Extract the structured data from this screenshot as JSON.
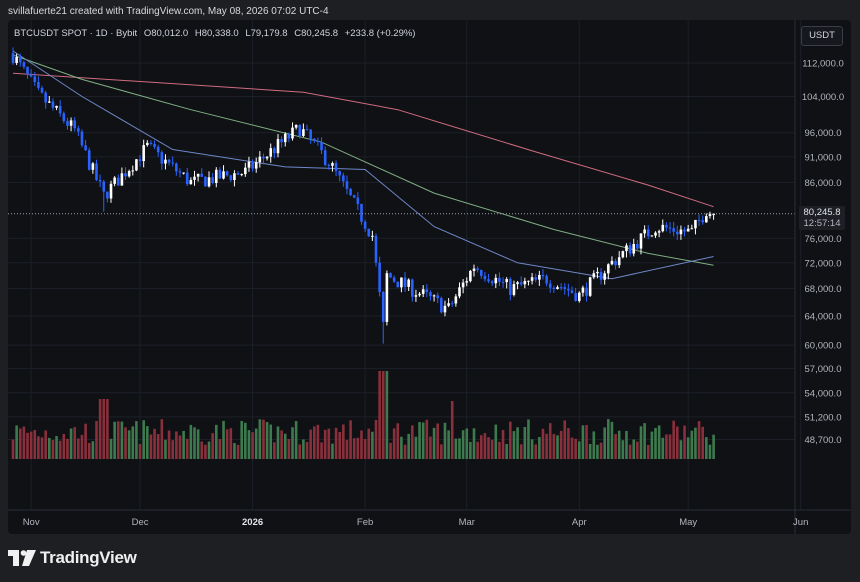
{
  "credit": "svillafuerte21 created with TradingView.com, May 08, 2026 07:02 UTC-4",
  "legend": {
    "symbol": "BTCUSDT SPOT · 1D · Bybit",
    "open": "O80,012.0",
    "high": "H80,338.0",
    "low": "L79,179.8",
    "close": "C80,245.8",
    "change": "+233.8 (+0.29%)"
  },
  "currency_button": "USDT",
  "last_price": {
    "value": "80,245.8",
    "countdown": "12:57:14"
  },
  "brand": "TradingView",
  "colors": {
    "bull": "#ffffff",
    "bear": "#2962ff",
    "vol_up": "#3d7a4e",
    "vol_down": "#8a2f3c",
    "ma_red": "#d16b80",
    "ma_green": "#7fae83",
    "ma_blue": "#6f87c9"
  },
  "chart_data": {
    "type": "candlestick",
    "y_scale": "log",
    "y_ticks": [
      "112,000.0",
      "104,000.0",
      "96,000.0",
      "91,000.0",
      "86,000.0",
      "80,245.8",
      "76,000.0",
      "72,000.0",
      "68,000.0",
      "64,000.0",
      "60,000.0",
      "57,000.0",
      "54,000.0",
      "51,200.0",
      "48,700.0"
    ],
    "x_ticks": [
      "Nov",
      "Dec",
      "2026",
      "Feb",
      "Mar",
      "Apr",
      "May",
      "Jun"
    ],
    "close_path": [
      {
        "date": "2025-10-27",
        "close": 114000
      },
      {
        "date": "2025-11-03",
        "close": 104500
      },
      {
        "date": "2025-11-13",
        "close": 96500
      },
      {
        "date": "2025-11-21",
        "close": 83500
      },
      {
        "date": "2025-12-03",
        "close": 93000
      },
      {
        "date": "2025-12-15",
        "close": 86000
      },
      {
        "date": "2025-12-30",
        "close": 88000
      },
      {
        "date": "2026-01-14",
        "close": 97000
      },
      {
        "date": "2026-01-22",
        "close": 90000
      },
      {
        "date": "2026-02-03",
        "close": 76500
      },
      {
        "date": "2026-02-06",
        "close": 62500
      },
      {
        "date": "2026-02-07",
        "close": 70000
      },
      {
        "date": "2026-02-24",
        "close": 65000
      },
      {
        "date": "2026-03-03",
        "close": 71500
      },
      {
        "date": "2026-03-13",
        "close": 68000
      },
      {
        "date": "2026-03-23",
        "close": 69500
      },
      {
        "date": "2026-04-01",
        "close": 67000
      },
      {
        "date": "2026-04-10",
        "close": 72000
      },
      {
        "date": "2026-04-22",
        "close": 78000
      },
      {
        "date": "2026-05-02",
        "close": 77000
      },
      {
        "date": "2026-05-06",
        "close": 81000
      },
      {
        "date": "2026-05-08",
        "close": 80245.8
      }
    ],
    "last": {
      "open": 80012.0,
      "high": 80338.0,
      "low": 79179.8,
      "close": 80245.8
    },
    "ma_series": [
      {
        "color": "red",
        "points": [
          {
            "date": "2025-10-27",
            "value": 109500
          },
          {
            "date": "2025-12-01",
            "value": 107500
          },
          {
            "date": "2026-01-15",
            "value": 105000
          },
          {
            "date": "2026-02-10",
            "value": 101000
          },
          {
            "date": "2026-03-20",
            "value": 92000
          },
          {
            "date": "2026-04-20",
            "value": 85500
          },
          {
            "date": "2026-05-08",
            "value": 81500
          }
        ]
      },
      {
        "color": "green",
        "points": [
          {
            "date": "2025-10-27",
            "value": 114000
          },
          {
            "date": "2025-11-15",
            "value": 108000
          },
          {
            "date": "2025-12-15",
            "value": 101000
          },
          {
            "date": "2026-01-20",
            "value": 94000
          },
          {
            "date": "2026-02-20",
            "value": 84000
          },
          {
            "date": "2026-03-25",
            "value": 77500
          },
          {
            "date": "2026-04-20",
            "value": 73500
          },
          {
            "date": "2026-05-08",
            "value": 71600
          }
        ]
      },
      {
        "color": "blue",
        "points": [
          {
            "date": "2025-10-27",
            "value": 115000
          },
          {
            "date": "2025-11-15",
            "value": 104000
          },
          {
            "date": "2025-12-10",
            "value": 92500
          },
          {
            "date": "2026-01-10",
            "value": 89000
          },
          {
            "date": "2026-02-01",
            "value": 88500
          },
          {
            "date": "2026-02-20",
            "value": 78000
          },
          {
            "date": "2026-03-15",
            "value": 72000
          },
          {
            "date": "2026-04-10",
            "value": 69500
          },
          {
            "date": "2026-05-08",
            "value": 73000
          }
        ]
      }
    ]
  }
}
